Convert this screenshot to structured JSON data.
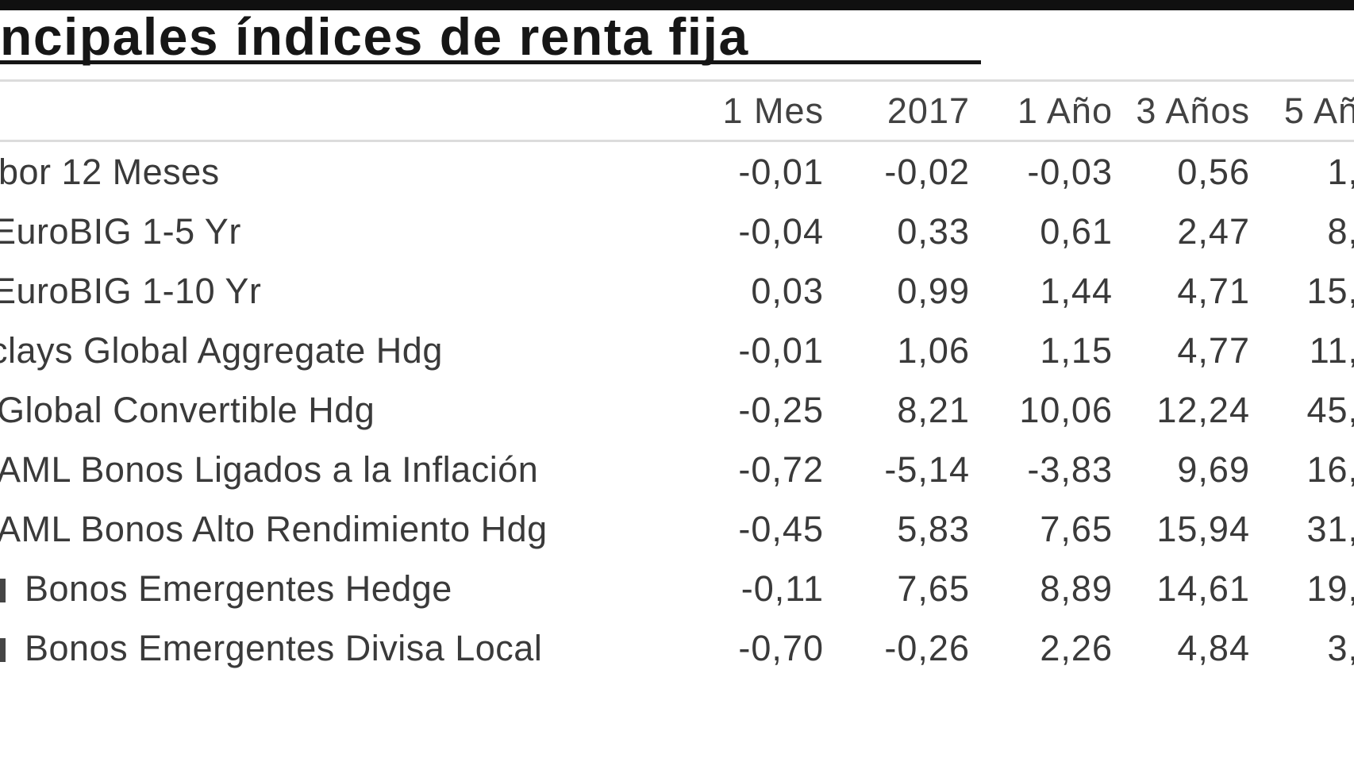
{
  "title": "ncipales índices de renta fija",
  "table": {
    "columns": [
      "1 Mes",
      "2017",
      "1 Año",
      "3 Años",
      "5 Añ"
    ],
    "rows": [
      {
        "label": "bor 12 Meses",
        "values": [
          "-0,01",
          "-0,02",
          "-0,03",
          "0,56",
          "1,"
        ]
      },
      {
        "label": "EuroBIG 1-5 Yr",
        "values": [
          "-0,04",
          "0,33",
          "0,61",
          "2,47",
          "8,"
        ]
      },
      {
        "label": "EuroBIG 1-10 Yr",
        "values": [
          "0,03",
          "0,99",
          "1,44",
          "4,71",
          "15,"
        ]
      },
      {
        "label": "clays Global Aggregate Hdg",
        "values": [
          "-0,01",
          "1,06",
          "1,15",
          "4,77",
          "11,"
        ]
      },
      {
        "label": "Global Convertible Hdg",
        "values": [
          "-0,25",
          "8,21",
          "10,06",
          "12,24",
          "45,"
        ]
      },
      {
        "label": "AML Bonos Ligados a la Inflación",
        "values": [
          "-0,72",
          "-5,14",
          "-3,83",
          "9,69",
          "16,"
        ]
      },
      {
        "label": "AML Bonos Alto Rendimiento Hdg",
        "values": [
          "-0,45",
          "5,83",
          "7,65",
          "15,94",
          "31,"
        ]
      },
      {
        "label": "Bonos Emergentes Hedge",
        "values": [
          "-0,11",
          "7,65",
          "8,89",
          "14,61",
          "19,"
        ]
      },
      {
        "label": "Bonos Emergentes Divisa Local",
        "values": [
          "-0,70",
          "-0,26",
          "2,26",
          "4,84",
          "3,"
        ]
      }
    ]
  },
  "colors": {
    "text": "#3a3a3a",
    "title": "#161616",
    "topbar": "#101010",
    "rule": "#dcdcdc",
    "background": "#ffffff"
  }
}
